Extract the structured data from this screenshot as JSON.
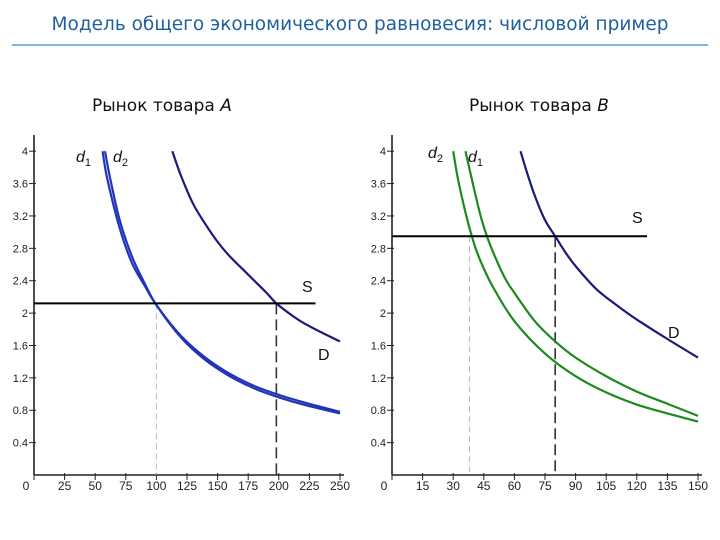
{
  "page": {
    "title": "Модель общего экономического равновесия: числовой пример"
  },
  "colors": {
    "demand_a": "#2233bb",
    "demand_b": "#1c8a1c",
    "market_demand": "#1a1a7a",
    "supply": "#000000",
    "title": "#1f5f9f"
  },
  "chart_data": [
    {
      "type": "line",
      "title_prefix": "Рынок товара",
      "title_var": "A",
      "xlim": [
        0,
        250
      ],
      "ylim": [
        0,
        4.2
      ],
      "x_ticks": [
        0,
        25,
        50,
        75,
        100,
        125,
        150,
        175,
        200,
        225,
        250
      ],
      "y_ticks": [
        0.4,
        0.8,
        1.2,
        1.6,
        2,
        2.4,
        2.8,
        3.2,
        3.6,
        4
      ],
      "series": [
        {
          "name": "d1",
          "label_main": "d",
          "label_sub": "1",
          "color_key": "demand_a",
          "x": [
            56,
            60,
            70,
            80,
            90,
            100,
            120,
            140,
            160,
            180,
            200,
            220,
            250
          ],
          "y": [
            4.0,
            3.65,
            3.05,
            2.62,
            2.35,
            2.1,
            1.72,
            1.45,
            1.25,
            1.1,
            0.99,
            0.9,
            0.78
          ]
        },
        {
          "name": "d2",
          "label_main": "d",
          "label_sub": "2",
          "color_key": "demand_a",
          "x": [
            58,
            62,
            70,
            80,
            90,
            100,
            120,
            140,
            160,
            180,
            200,
            220,
            250
          ],
          "y": [
            4.0,
            3.68,
            3.15,
            2.7,
            2.38,
            2.1,
            1.7,
            1.42,
            1.22,
            1.07,
            0.96,
            0.87,
            0.76
          ]
        },
        {
          "name": "D",
          "label_main": "D",
          "color_key": "market_demand",
          "x": [
            113,
            120,
            130,
            140,
            150,
            160,
            170,
            180,
            190,
            198,
            210,
            220,
            235,
            250
          ],
          "y": [
            4.0,
            3.7,
            3.35,
            3.1,
            2.88,
            2.7,
            2.55,
            2.4,
            2.25,
            2.12,
            1.98,
            1.88,
            1.76,
            1.65
          ]
        },
        {
          "name": "S",
          "label_main": "S",
          "color_key": "supply",
          "x": [
            0,
            230
          ],
          "y": [
            2.12,
            2.12
          ]
        }
      ],
      "equilibria": [
        {
          "x": 100,
          "y": 2.12,
          "style": "thin"
        },
        {
          "x": 198,
          "y": 2.12,
          "style": "thick"
        }
      ]
    },
    {
      "type": "line",
      "title_prefix": "Рынок товара",
      "title_var": "B",
      "xlim": [
        0,
        150
      ],
      "ylim": [
        0,
        4.2
      ],
      "x_ticks": [
        0,
        15,
        30,
        45,
        60,
        75,
        90,
        105,
        120,
        135,
        150
      ],
      "y_ticks": [
        0.4,
        0.8,
        1.2,
        1.6,
        2,
        2.4,
        2.8,
        3.2,
        3.6,
        4
      ],
      "series": [
        {
          "name": "d2",
          "label_main": "d",
          "label_sub": "2",
          "color_key": "demand_b",
          "x": [
            30,
            32,
            35,
            38,
            41,
            45,
            50,
            60,
            75,
            90,
            105,
            120,
            135,
            150
          ],
          "y": [
            4.0,
            3.7,
            3.35,
            3.05,
            2.8,
            2.55,
            2.3,
            1.9,
            1.5,
            1.22,
            1.02,
            0.87,
            0.76,
            0.66
          ]
        },
        {
          "name": "d1",
          "label_main": "d",
          "label_sub": "1",
          "color_key": "demand_b",
          "x": [
            36,
            38,
            41,
            44,
            48,
            55,
            60,
            70,
            80,
            90,
            105,
            120,
            135,
            150
          ],
          "y": [
            4.0,
            3.78,
            3.45,
            3.15,
            2.85,
            2.45,
            2.25,
            1.9,
            1.65,
            1.45,
            1.22,
            1.03,
            0.88,
            0.73
          ]
        },
        {
          "name": "D",
          "label_main": "D",
          "color_key": "market_demand",
          "x": [
            63,
            66,
            70,
            75,
            80,
            85,
            90,
            100,
            110,
            120,
            135,
            150
          ],
          "y": [
            4.0,
            3.75,
            3.45,
            3.15,
            2.95,
            2.75,
            2.58,
            2.3,
            2.1,
            1.92,
            1.68,
            1.45
          ]
        },
        {
          "name": "S",
          "label_main": "S",
          "color_key": "supply",
          "x": [
            0,
            125
          ],
          "y": [
            2.95,
            2.95
          ]
        }
      ],
      "equilibria": [
        {
          "x": 38,
          "y": 2.95,
          "style": "thin"
        },
        {
          "x": 80,
          "y": 2.95,
          "style": "thick"
        }
      ]
    }
  ]
}
